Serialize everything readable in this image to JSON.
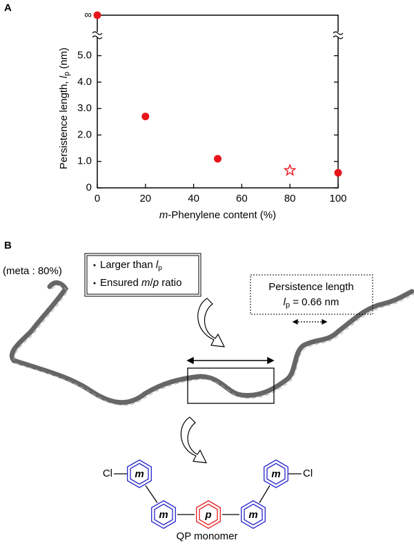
{
  "chart_data": {
    "type": "scatter",
    "panel_label": "A",
    "xlabel_parts": [
      "m",
      "-Phenylene content (%)"
    ],
    "ylabel_parts": [
      "Persistence length, ",
      "l",
      "p",
      " (nm)"
    ],
    "xlim": [
      0,
      100
    ],
    "xticks": [
      0,
      20,
      40,
      60,
      80,
      100
    ],
    "ylim": [
      0,
      5.8
    ],
    "yticks": [
      0,
      {
        "value": 1,
        "label": "1.0"
      },
      {
        "value": 2,
        "label": "2.0"
      },
      {
        "value": 3,
        "label": "3.0"
      },
      {
        "value": 4,
        "label": "4.0"
      },
      {
        "value": 5,
        "label": "5.0"
      }
    ],
    "y_infinity_label": "∞",
    "infinite_x": [
      0
    ],
    "series": [
      {
        "marker": "circle",
        "color": "#e8141b",
        "x": [
          20,
          50,
          100
        ],
        "values": [
          2.7,
          1.1,
          0.57
        ]
      },
      {
        "marker": "star",
        "color": "#e8141b",
        "x": [
          80
        ],
        "values": [
          0.66
        ]
      }
    ]
  },
  "diagram": {
    "panel_label": "B",
    "composition": "(meta : 80%)",
    "legend": [
      [
        "Larger than ",
        "l",
        "p"
      ],
      [
        "Ensured ",
        "m",
        "/",
        "p",
        " ratio"
      ]
    ],
    "persistence_box": {
      "title": "Persistence length",
      "line": [
        "l",
        "p",
        " = 0.66 nm"
      ]
    },
    "monomer": {
      "substituents": [
        "Cl",
        "Cl"
      ],
      "rings": [
        "m",
        "m",
        "p",
        "m",
        "m"
      ],
      "caption": "QP monomer"
    }
  }
}
